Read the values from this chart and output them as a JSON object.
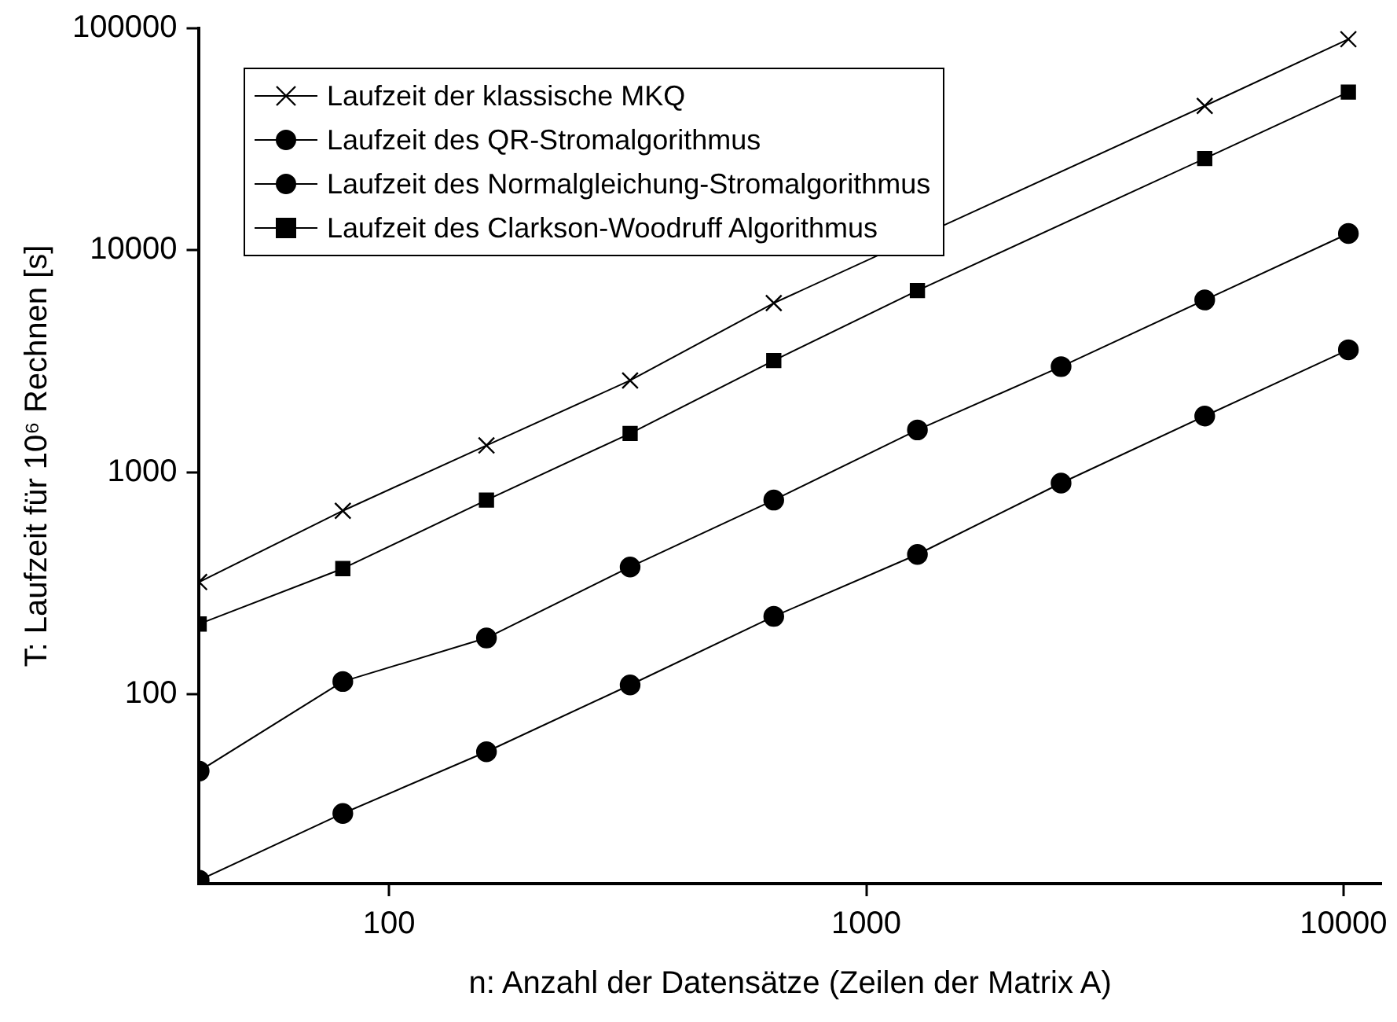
{
  "chart_data": {
    "type": "line",
    "xlabel": "n: Anzahl der Datensätze (Zeilen der Matrix A)",
    "ylabel": "T: Laufzeit für 10⁶ Rechnen [s]",
    "x": [
      40,
      80,
      160,
      320,
      640,
      1280,
      2560,
      5120,
      10240
    ],
    "series": [
      {
        "name": "Laufzeit der klassische MKQ",
        "color": "#000000",
        "marker": "cross",
        "values": [
          320,
          670,
          1320,
          2590,
          5780,
          null,
          null,
          44700,
          89300
        ]
      },
      {
        "name": "Laufzeit des QR-Stromalgorithmus",
        "color": "#000000",
        "marker": "circle",
        "values": [
          45,
          114,
          179,
          374,
          749,
          1550,
          2990,
          5970,
          11900
        ]
      },
      {
        "name": "Laufzeit des Normalgleichung-Stromalgorithmus",
        "color": "#000000",
        "marker": "circle",
        "values": [
          14.5,
          29,
          55,
          110,
          224,
          426,
          893,
          1790,
          3560
        ]
      },
      {
        "name": "Laufzeit des Clarkson-Woodruff Algorithmus",
        "color": "#000000",
        "marker": "square",
        "values": [
          207,
          368,
          749,
          1495,
          3185,
          6580,
          null,
          25900,
          51600
        ]
      }
    ],
    "log": "xy",
    "xlim": [
      40,
      12000
    ],
    "ylim": [
      14,
      100000
    ],
    "xticks": [
      100,
      1000,
      10000
    ],
    "yticks": [
      100,
      1000,
      10000,
      100000
    ],
    "grid": false,
    "legend": "top left"
  }
}
